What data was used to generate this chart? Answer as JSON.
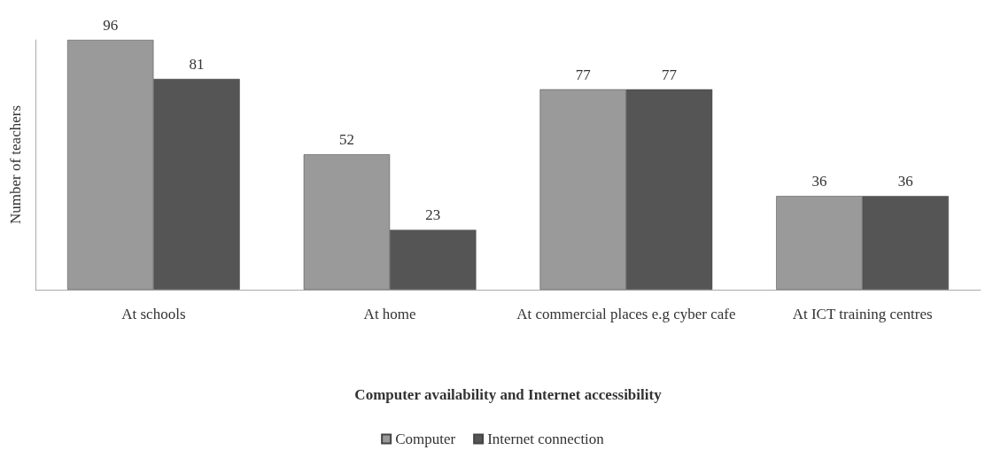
{
  "chart_data": {
    "type": "bar",
    "xlabel": "Computer availability and Internet accessibility",
    "ylabel": "Number of teachers",
    "categories": [
      "At schools",
      "At home",
      "At commercial places e.g cyber cafe",
      "At ICT training centres"
    ],
    "series": [
      {
        "name": "Computer",
        "color": "#9a9a9a",
        "values": [
          96,
          52,
          77,
          36
        ]
      },
      {
        "name": "Internet connection",
        "color": "#555555",
        "values": [
          81,
          23,
          77,
          36
        ]
      }
    ],
    "data_labels": true,
    "legend": "bottom",
    "grid": false
  }
}
